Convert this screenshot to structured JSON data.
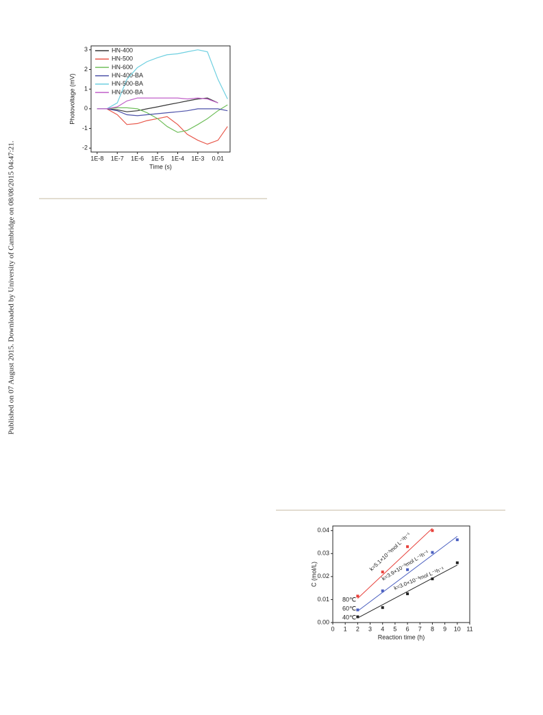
{
  "side_text": "Published on 07 August 2015. Downloaded by University of Cambridge on 08/08/2015 04:47:21.",
  "chart_data": [
    {
      "type": "line",
      "xlabel": "Time (s)",
      "ylabel": "Photovoltage (mV)",
      "log_x": true,
      "legend": "upper left",
      "x": [
        1e-08,
        3e-08,
        1e-07,
        3e-07,
        1e-06,
        3e-06,
        1e-05,
        3e-05,
        0.0001,
        0.0003,
        0.001,
        0.003,
        0.01,
        0.03
      ],
      "xlim": [
        5e-09,
        0.04
      ],
      "xticks": [
        {
          "value": 1e-08,
          "label": "1E-8"
        },
        {
          "value": 1e-07,
          "label": "1E-7"
        },
        {
          "value": 1e-06,
          "label": "1E-6"
        },
        {
          "value": 1e-05,
          "label": "1E-5"
        },
        {
          "value": 0.0001,
          "label": "1E-4"
        },
        {
          "value": 0.001,
          "label": "1E-3"
        },
        {
          "value": 0.01,
          "label": "0.01"
        }
      ],
      "ylim": [
        -2.2,
        3.2
      ],
      "yticks": [
        -2,
        -1,
        0,
        1,
        2,
        3
      ],
      "series": [
        {
          "name": "HN-400",
          "color": "#333333",
          "values": [
            0,
            0,
            -0.05,
            -0.15,
            -0.1,
            0,
            0.1,
            0.2,
            0.3,
            0.4,
            0.5,
            0.55,
            0.3,
            null
          ]
        },
        {
          "name": "HN-500",
          "color": "#e8574a",
          "values": [
            0,
            0,
            -0.3,
            -0.8,
            -0.75,
            -0.6,
            -0.5,
            -0.4,
            -0.8,
            -1.3,
            -1.6,
            -1.8,
            -1.6,
            -0.9
          ]
        },
        {
          "name": "HN-600",
          "color": "#6fbe5a",
          "values": [
            0,
            0,
            0.05,
            0.05,
            0,
            -0.2,
            -0.5,
            -0.9,
            -1.2,
            -1.1,
            -0.8,
            -0.5,
            -0.1,
            0.2
          ]
        },
        {
          "name": "HN-400-BA",
          "color": "#4a4fa8",
          "values": [
            0,
            0,
            -0.1,
            -0.3,
            -0.35,
            -0.3,
            -0.25,
            -0.2,
            -0.15,
            -0.1,
            0,
            0,
            0,
            -0.1
          ]
        },
        {
          "name": "HN-500-BA",
          "color": "#6ccfe0",
          "values": [
            0,
            0,
            0.3,
            1.5,
            2.1,
            2.4,
            2.6,
            2.75,
            2.8,
            2.9,
            3.0,
            2.9,
            1.5,
            0.5
          ]
        },
        {
          "name": "HN-600-BA",
          "color": "#c05fc8",
          "values": [
            0,
            0,
            0.1,
            0.4,
            0.55,
            0.55,
            0.55,
            0.55,
            0.55,
            0.5,
            0.55,
            0.5,
            0.3,
            null
          ]
        }
      ]
    },
    {
      "type": "scatter",
      "xlabel": "Reaction time (h)",
      "ylabel": "C (mol/L)",
      "xlim": [
        0,
        11
      ],
      "xticks": [
        0,
        1,
        2,
        3,
        4,
        5,
        6,
        7,
        8,
        9,
        10,
        11
      ],
      "ylim": [
        0,
        0.042
      ],
      "yticks": [
        {
          "value": 0,
          "label": "0.00"
        },
        {
          "value": 0.01,
          "label": "0.01"
        },
        {
          "value": 0.02,
          "label": "0.02"
        },
        {
          "value": 0.03,
          "label": "0.03"
        },
        {
          "value": 0.04,
          "label": "0.04"
        }
      ],
      "series": [
        {
          "name": "80℃",
          "color": "#e8403a",
          "x": [
            2,
            4,
            6,
            8
          ],
          "values": [
            0.0115,
            0.022,
            0.033,
            0.04
          ],
          "fit": {
            "x": [
              2,
              8
            ],
            "values": [
              0.0105,
              0.041
            ]
          },
          "annotation": "k=5.1×10⁻³mol L⁻¹h⁻¹"
        },
        {
          "name": "60℃",
          "color": "#4a5fc0",
          "x": [
            2,
            4,
            6,
            8,
            10
          ],
          "values": [
            0.0055,
            0.0138,
            0.023,
            0.0305,
            0.036
          ],
          "fit": {
            "x": [
              2,
              10
            ],
            "values": [
              0.005,
              0.0375
            ]
          },
          "annotation": "k=3.9×10⁻³mol L⁻¹h⁻¹"
        },
        {
          "name": "40℃",
          "color": "#222222",
          "x": [
            2,
            4,
            6,
            8,
            10
          ],
          "values": [
            0.0025,
            0.0065,
            0.0125,
            0.019,
            0.026
          ],
          "fit": {
            "x": [
              2,
              10
            ],
            "values": [
              0.002,
              0.025
            ]
          },
          "annotation": "k=3.0×10⁻³mol L⁻¹h⁻¹"
        }
      ]
    }
  ]
}
